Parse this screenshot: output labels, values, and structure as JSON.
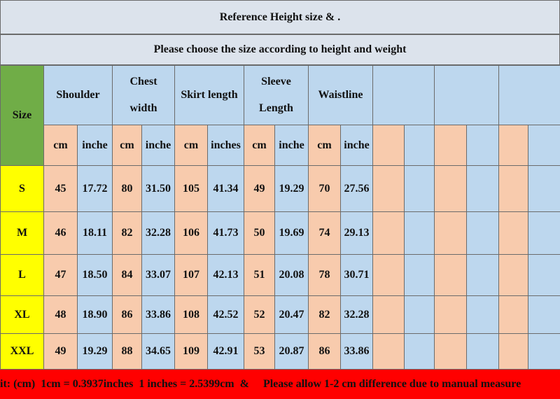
{
  "header": {
    "title": "Reference Height size   &  .",
    "subtitle": "Please choose the size according to height and weight"
  },
  "table": {
    "size_label": "Size",
    "columns": [
      {
        "label": "Shoulder",
        "units": [
          "cm",
          "inche"
        ]
      },
      {
        "label": "Chest\nwidth",
        "units": [
          "cm",
          "inche"
        ]
      },
      {
        "label": "Skirt length",
        "units": [
          "cm",
          "inches"
        ]
      },
      {
        "label": "Sleeve\nLength",
        "units": [
          "cm",
          "inche"
        ]
      },
      {
        "label": "Waistline",
        "units": [
          "cm",
          "inche"
        ]
      }
    ],
    "rows": [
      [
        "S",
        "45",
        "17.72",
        "80",
        "31.50",
        "105",
        "41.34",
        "49",
        "19.29",
        "70",
        "27.56"
      ],
      [
        "M",
        "46",
        "18.11",
        "82",
        "32.28",
        "106",
        "41.73",
        "50",
        "19.69",
        "74",
        "29.13"
      ],
      [
        "L",
        "47",
        "18.50",
        "84",
        "33.07",
        "107",
        "42.13",
        "51",
        "20.08",
        "78",
        "30.71"
      ],
      [
        "XL",
        "48",
        "18.90",
        "86",
        "33.86",
        "108",
        "42.52",
        "52",
        "20.47",
        "82",
        "32.28"
      ],
      [
        "XXL",
        "49",
        "19.29",
        "88",
        "34.65",
        "109",
        "42.91",
        "53",
        "20.87",
        "86",
        "33.86"
      ]
    ]
  },
  "footer": "it: (cm)  1cm = 0.3937inches  1 inches = 2.5399cm  &     Please allow 1-2 cm difference due to manual measure"
}
